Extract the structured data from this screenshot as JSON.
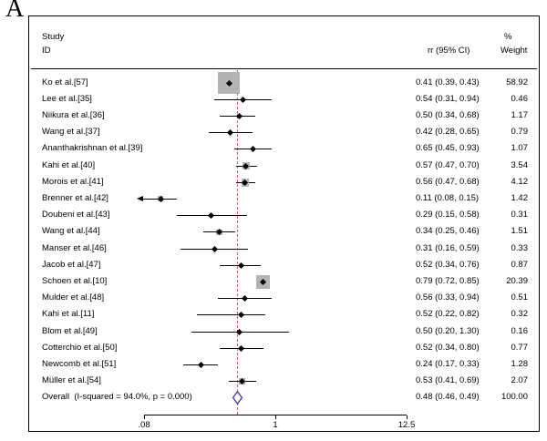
{
  "panel_label": "A",
  "chart_data": {
    "type": "forest",
    "title": "",
    "columns": {
      "study_line1": "Study",
      "study_line2": "ID",
      "effect": "rr (95% CI)",
      "percent": "%",
      "weight": "Weight"
    },
    "x_axis": {
      "scale": "log",
      "min": 0.08,
      "max": 12.5,
      "ticks": [
        {
          "label": ".08",
          "value": 0.08
        },
        {
          "label": "1",
          "value": 1
        },
        {
          "label": "12.5",
          "value": 12.5
        }
      ]
    },
    "null_line_value": 0.48,
    "studies": [
      {
        "label": "Ko et al.[57]",
        "rr": 0.41,
        "lo": 0.39,
        "hi": 0.43,
        "effect_text": "0.41 (0.39, 0.43)",
        "weight": 58.92,
        "weight_text": "58.92"
      },
      {
        "label": "Lee et al.[35]",
        "rr": 0.54,
        "lo": 0.31,
        "hi": 0.94,
        "effect_text": "0.54 (0.31, 0.94)",
        "weight": 0.46,
        "weight_text": "0.46"
      },
      {
        "label": "Niikura et al.[36]",
        "rr": 0.5,
        "lo": 0.34,
        "hi": 0.68,
        "effect_text": "0.50 (0.34, 0.68)",
        "weight": 1.17,
        "weight_text": "1.17"
      },
      {
        "label": "Wang et al.[37]",
        "rr": 0.42,
        "lo": 0.28,
        "hi": 0.65,
        "effect_text": "0.42 (0.28, 0.65)",
        "weight": 0.79,
        "weight_text": "0.79"
      },
      {
        "label": "Ananthakrishnan et al.[39]",
        "rr": 0.65,
        "lo": 0.45,
        "hi": 0.93,
        "effect_text": "0.65 (0.45, 0.93)",
        "weight": 1.07,
        "weight_text": "1.07"
      },
      {
        "label": "Kahi et al.[40]",
        "rr": 0.57,
        "lo": 0.47,
        "hi": 0.7,
        "effect_text": "0.57 (0.47, 0.70)",
        "weight": 3.54,
        "weight_text": "3.54"
      },
      {
        "label": "Morois et al.[41]",
        "rr": 0.56,
        "lo": 0.47,
        "hi": 0.68,
        "effect_text": "0.56 (0.47, 0.68)",
        "weight": 4.12,
        "weight_text": "4.12"
      },
      {
        "label": "Brenner et al.[42]",
        "rr": 0.11,
        "lo": 0.08,
        "hi": 0.15,
        "effect_text": "0.11 (0.08, 0.15)",
        "weight": 1.42,
        "weight_text": "1.42"
      },
      {
        "label": "Doubeni et al.[43]",
        "rr": 0.29,
        "lo": 0.15,
        "hi": 0.58,
        "effect_text": "0.29 (0.15, 0.58)",
        "weight": 0.31,
        "weight_text": "0.31"
      },
      {
        "label": "Wang et al.[44]",
        "rr": 0.34,
        "lo": 0.25,
        "hi": 0.46,
        "effect_text": "0.34 (0.25, 0.46)",
        "weight": 1.51,
        "weight_text": "1.51"
      },
      {
        "label": "Manser et al.[46]",
        "rr": 0.31,
        "lo": 0.16,
        "hi": 0.59,
        "effect_text": "0.31 (0.16, 0.59)",
        "weight": 0.33,
        "weight_text": "0.33"
      },
      {
        "label": "Jacob et al.[47]",
        "rr": 0.52,
        "lo": 0.34,
        "hi": 0.76,
        "effect_text": "0.52 (0.34, 0.76)",
        "weight": 0.87,
        "weight_text": "0.87"
      },
      {
        "label": "Schoen et al.[10]",
        "rr": 0.79,
        "lo": 0.72,
        "hi": 0.85,
        "effect_text": "0.79 (0.72, 0.85)",
        "weight": 20.39,
        "weight_text": "20.39"
      },
      {
        "label": "Mulder et al.[48]",
        "rr": 0.56,
        "lo": 0.33,
        "hi": 0.94,
        "effect_text": "0.56 (0.33, 0.94)",
        "weight": 0.51,
        "weight_text": "0.51"
      },
      {
        "label": "Kahi et al.[11]",
        "rr": 0.52,
        "lo": 0.22,
        "hi": 0.82,
        "effect_text": "0.52 (0.22, 0.82)",
        "weight": 0.32,
        "weight_text": "0.32"
      },
      {
        "label": "Blom et al.[49]",
        "rr": 0.5,
        "lo": 0.2,
        "hi": 1.3,
        "effect_text": "0.50 (0.20, 1.30)",
        "weight": 0.16,
        "weight_text": "0.16"
      },
      {
        "label": "Cotterchio et al.[50]",
        "rr": 0.52,
        "lo": 0.34,
        "hi": 0.8,
        "effect_text": "0.52 (0.34, 0.80)",
        "weight": 0.77,
        "weight_text": "0.77"
      },
      {
        "label": "Newcomb et al.[51]",
        "rr": 0.24,
        "lo": 0.17,
        "hi": 0.33,
        "effect_text": "0.24 (0.17, 0.33)",
        "weight": 1.28,
        "weight_text": "1.28"
      },
      {
        "label": "Müller et al.[54]",
        "rr": 0.53,
        "lo": 0.41,
        "hi": 0.69,
        "effect_text": "0.53 (0.41, 0.69)",
        "weight": 2.07,
        "weight_text": "2.07"
      }
    ],
    "overall": {
      "label": "Overall  (I-squared = 94.0%, p = 0.000)",
      "rr": 0.48,
      "lo": 0.46,
      "hi": 0.49,
      "effect_text": "0.48 (0.46, 0.49)",
      "weight_text": "100.00"
    },
    "colors": {
      "weight_square": "#b4b4b4",
      "point": "#000000",
      "ci_line": "#000000",
      "null_line": "#cc6666",
      "overall_diamond": "#3333aa"
    }
  }
}
